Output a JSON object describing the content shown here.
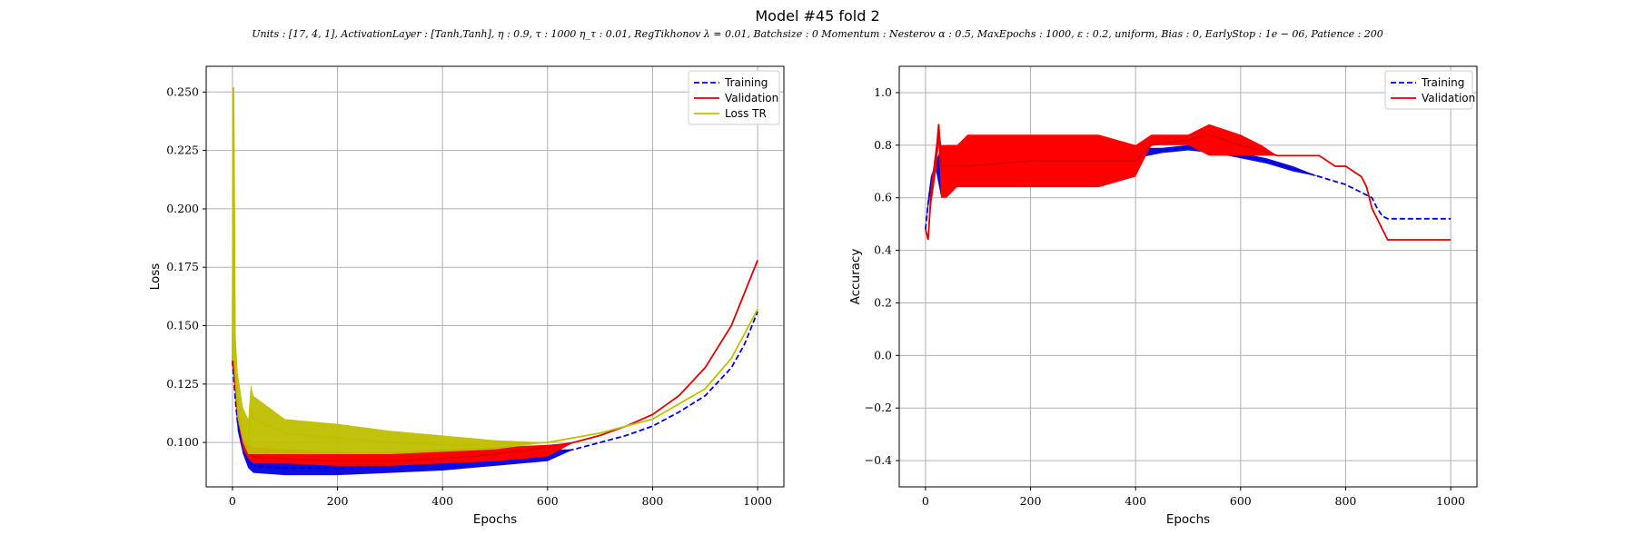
{
  "title": "Model #45 fold 2",
  "subtitle": "Units : [17, 4, 1], ActivationLayer : [Tanh,Tanh], η : 0.9, τ :  1000 η_τ :  0.01, RegTikhonov λ =  0.01, Batchsize : 0 Momentum :  Nesterov α : 0.5, MaxEpochs : 1000, ε :  0.2, uniform, Bias :  0, EarlyStop : 1e − 06, Patience :  200",
  "colors": {
    "training": "#0000dd",
    "validation": "#dd0000",
    "loss_tr": "#bfbf00",
    "band_red": "#ff0000"
  },
  "chart_data": [
    {
      "type": "line",
      "xlabel": "Epochs",
      "ylabel": "Loss",
      "xlim": [
        -50,
        1050
      ],
      "ylim": [
        0.081,
        0.261
      ],
      "xticks": [
        0,
        200,
        400,
        600,
        800,
        1000
      ],
      "yticks": [
        0.1,
        0.125,
        0.15,
        0.175,
        0.2,
        0.225,
        0.25
      ],
      "ytick_labels": [
        "0.100",
        "0.125",
        "0.150",
        "0.175",
        "0.200",
        "0.225",
        "0.250"
      ],
      "grid": true,
      "legend_position": "top-right",
      "legend": [
        "Training",
        "Validation",
        "Loss TR"
      ],
      "series": [
        {
          "name": "Training",
          "style": "dashed",
          "color": "#0000dd",
          "x": [
            0,
            5,
            10,
            20,
            30,
            40,
            100,
            200,
            300,
            400,
            500,
            600,
            650,
            700,
            750,
            800,
            850,
            900,
            950,
            975,
            1000
          ],
          "y": [
            0.135,
            0.12,
            0.108,
            0.097,
            0.092,
            0.09,
            0.089,
            0.089,
            0.09,
            0.091,
            0.093,
            0.095,
            0.097,
            0.1,
            0.103,
            0.107,
            0.113,
            0.12,
            0.132,
            0.142,
            0.156
          ],
          "band_low": [
            0.135,
            0.12,
            0.105,
            0.095,
            0.089,
            0.087,
            0.086,
            0.086,
            0.087,
            0.088,
            0.09,
            0.092,
            0.097,
            0.1,
            0.103,
            0.107,
            0.113,
            0.12,
            0.132,
            0.142,
            0.156
          ],
          "band_high": [
            0.135,
            0.12,
            0.11,
            0.099,
            0.095,
            0.094,
            0.094,
            0.093,
            0.094,
            0.095,
            0.096,
            0.097,
            0.097,
            0.1,
            0.103,
            0.107,
            0.113,
            0.12,
            0.132,
            0.142,
            0.156
          ]
        },
        {
          "name": "Validation",
          "style": "solid",
          "color": "#dd0000",
          "x": [
            0,
            5,
            10,
            20,
            30,
            40,
            100,
            200,
            300,
            400,
            500,
            600,
            650,
            700,
            750,
            800,
            850,
            900,
            950,
            1000
          ],
          "y": [
            0.137,
            0.125,
            0.113,
            0.1,
            0.096,
            0.094,
            0.093,
            0.092,
            0.092,
            0.093,
            0.095,
            0.098,
            0.1,
            0.103,
            0.107,
            0.112,
            0.12,
            0.132,
            0.15,
            0.178
          ],
          "band_low": [
            0.137,
            0.125,
            0.11,
            0.097,
            0.093,
            0.091,
            0.091,
            0.09,
            0.09,
            0.091,
            0.092,
            0.094,
            0.1,
            0.103,
            0.107,
            0.112,
            0.12,
            0.132,
            0.15,
            0.178
          ],
          "band_high": [
            0.137,
            0.125,
            0.115,
            0.102,
            0.099,
            0.098,
            0.097,
            0.096,
            0.096,
            0.097,
            0.098,
            0.099,
            0.1,
            0.103,
            0.107,
            0.112,
            0.12,
            0.132,
            0.15,
            0.178
          ]
        },
        {
          "name": "Loss TR",
          "style": "solid",
          "color": "#bfbf00",
          "x": [
            0,
            2,
            5,
            10,
            20,
            30,
            35,
            40,
            100,
            200,
            300,
            400,
            500,
            600,
            700,
            800,
            900,
            950,
            1000
          ],
          "y": [
            0.135,
            0.252,
            0.14,
            0.12,
            0.105,
            0.1,
            0.115,
            0.11,
            0.104,
            0.102,
            0.1,
            0.099,
            0.099,
            0.1,
            0.104,
            0.11,
            0.123,
            0.136,
            0.157
          ],
          "band_low": [
            0.135,
            0.135,
            0.125,
            0.11,
            0.1,
            0.095,
            0.095,
            0.095,
            0.095,
            0.095,
            0.095,
            0.096,
            0.097,
            0.1,
            0.104,
            0.11,
            0.123,
            0.136,
            0.157
          ],
          "band_high": [
            0.135,
            0.252,
            0.15,
            0.13,
            0.115,
            0.11,
            0.125,
            0.12,
            0.11,
            0.108,
            0.105,
            0.103,
            0.101,
            0.1,
            0.104,
            0.11,
            0.123,
            0.136,
            0.157
          ]
        }
      ]
    },
    {
      "type": "line",
      "xlabel": "Epochs",
      "ylabel": "Accuracy",
      "xlim": [
        -50,
        1050
      ],
      "ylim": [
        -0.5,
        1.1
      ],
      "xticks": [
        0,
        200,
        400,
        600,
        800,
        1000
      ],
      "yticks": [
        -0.4,
        -0.2,
        0.0,
        0.2,
        0.4,
        0.6,
        0.8,
        1.0
      ],
      "ytick_labels": [
        "−0.4",
        "−0.2",
        "0.0",
        "0.2",
        "0.4",
        "0.6",
        "0.8",
        "1.0"
      ],
      "grid": true,
      "legend_position": "top-right",
      "legend": [
        "Training",
        "Validation"
      ],
      "series": [
        {
          "name": "Training",
          "style": "dashed",
          "color": "#0000dd",
          "x": [
            0,
            5,
            10,
            20,
            30,
            40,
            100,
            200,
            300,
            400,
            450,
            500,
            550,
            600,
            650,
            700,
            750,
            800,
            850,
            860,
            870,
            880,
            900,
            950,
            1000
          ],
          "y": [
            0.48,
            0.58,
            0.65,
            0.72,
            0.76,
            0.78,
            0.78,
            0.77,
            0.76,
            0.77,
            0.78,
            0.79,
            0.78,
            0.76,
            0.74,
            0.71,
            0.68,
            0.65,
            0.6,
            0.56,
            0.53,
            0.52,
            0.52,
            0.52,
            0.52
          ],
          "band_low": [
            0.48,
            0.56,
            0.62,
            0.7,
            0.6,
            0.75,
            0.75,
            0.74,
            0.74,
            0.75,
            0.77,
            0.78,
            0.77,
            0.75,
            0.73,
            0.7,
            0.68,
            0.65,
            0.6,
            0.56,
            0.53,
            0.52,
            0.52,
            0.52,
            0.52
          ],
          "band_high": [
            0.48,
            0.6,
            0.68,
            0.74,
            0.79,
            0.8,
            0.8,
            0.79,
            0.79,
            0.79,
            0.79,
            0.8,
            0.79,
            0.77,
            0.75,
            0.72,
            0.68,
            0.65,
            0.6,
            0.56,
            0.53,
            0.52,
            0.52,
            0.52,
            0.52
          ]
        },
        {
          "name": "Validation",
          "style": "solid",
          "color": "#dd0000",
          "x": [
            0,
            5,
            10,
            20,
            25,
            30,
            40,
            60,
            80,
            200,
            330,
            400,
            430,
            500,
            540,
            600,
            640,
            670,
            700,
            750,
            780,
            800,
            830,
            840,
            850,
            870,
            880,
            900,
            1000
          ],
          "y": [
            0.48,
            0.44,
            0.6,
            0.76,
            0.88,
            0.72,
            0.72,
            0.72,
            0.72,
            0.74,
            0.74,
            0.74,
            0.8,
            0.82,
            0.84,
            0.8,
            0.78,
            0.76,
            0.76,
            0.76,
            0.72,
            0.72,
            0.68,
            0.64,
            0.56,
            0.48,
            0.44,
            0.44,
            0.44
          ],
          "band_low": [
            0.48,
            0.44,
            0.56,
            0.7,
            0.8,
            0.6,
            0.6,
            0.64,
            0.64,
            0.64,
            0.64,
            0.68,
            0.8,
            0.8,
            0.76,
            0.76,
            0.76,
            0.76,
            0.76,
            0.76,
            0.72,
            0.72,
            0.68,
            0.64,
            0.56,
            0.48,
            0.44,
            0.44,
            0.44
          ],
          "band_high": [
            0.48,
            0.44,
            0.64,
            0.8,
            0.88,
            0.8,
            0.8,
            0.8,
            0.84,
            0.84,
            0.84,
            0.8,
            0.84,
            0.84,
            0.88,
            0.84,
            0.8,
            0.76,
            0.76,
            0.76,
            0.72,
            0.72,
            0.68,
            0.64,
            0.56,
            0.48,
            0.44,
            0.44,
            0.44
          ]
        }
      ]
    }
  ]
}
